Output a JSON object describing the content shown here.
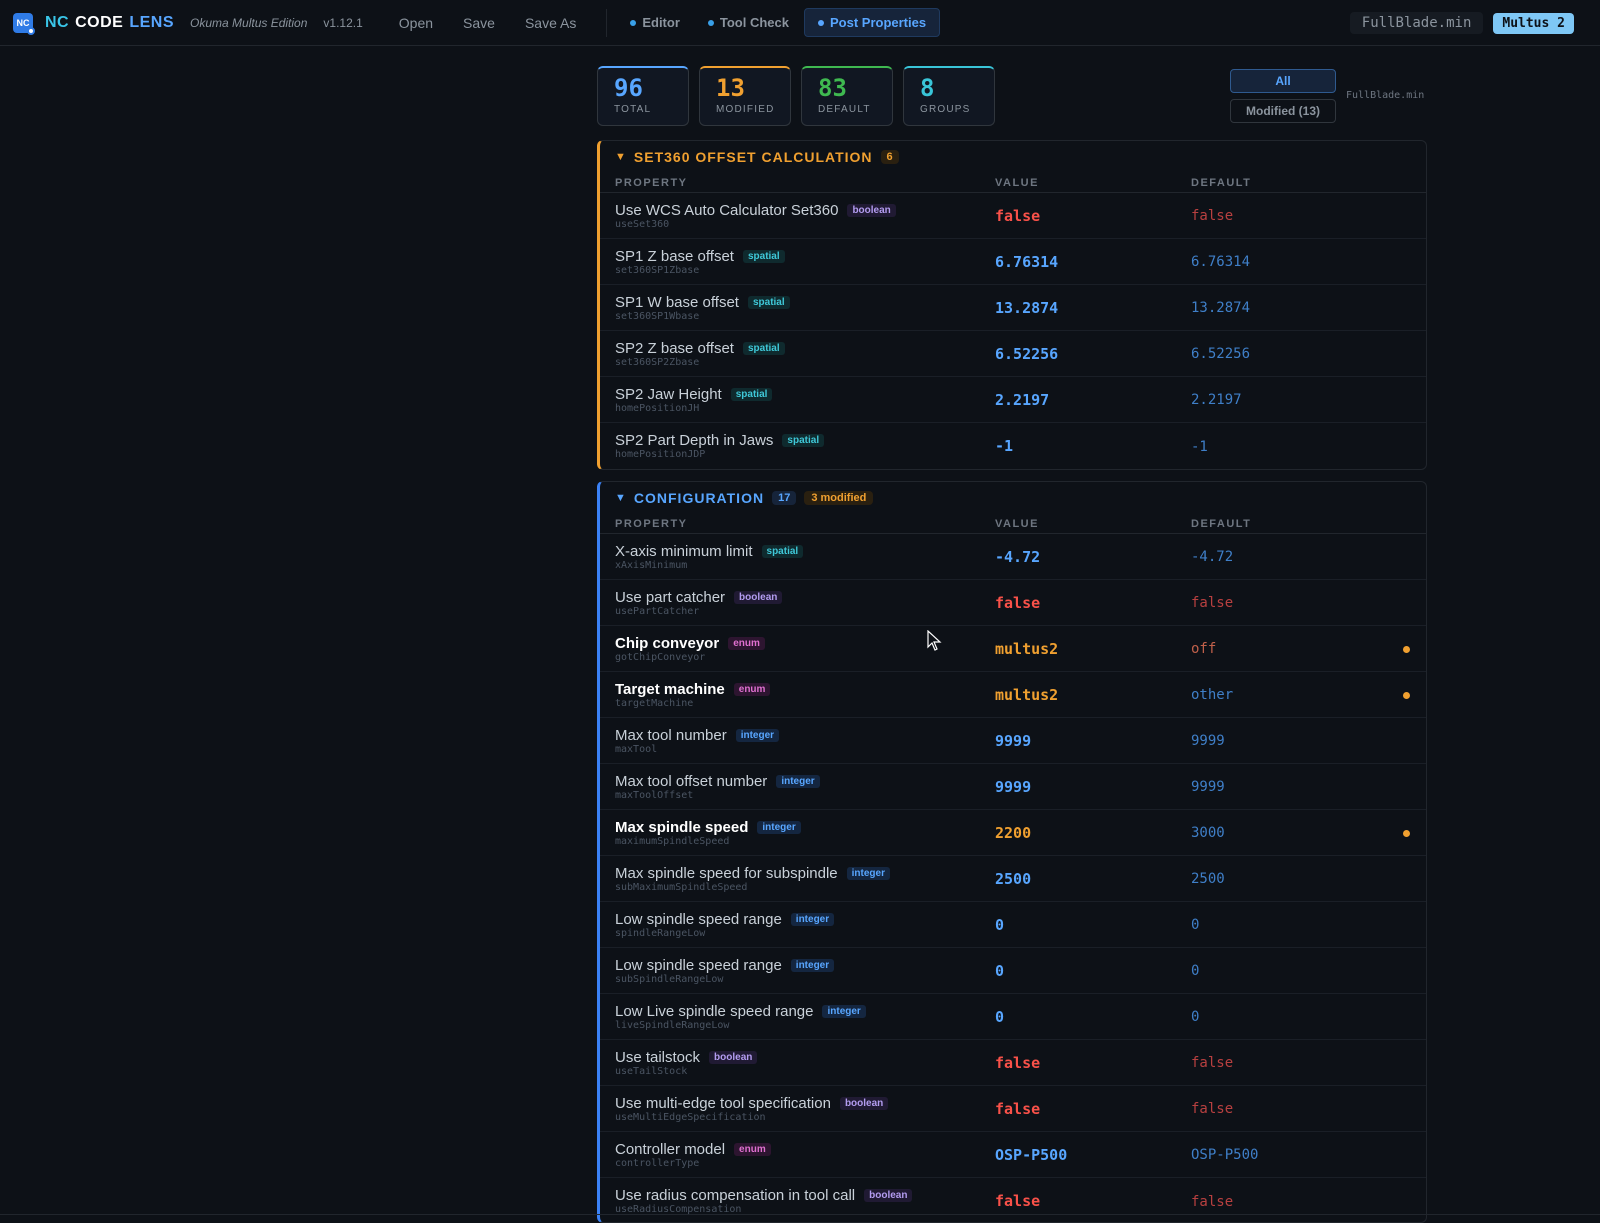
{
  "header": {
    "logo_text": "NC",
    "brand": [
      "NC",
      "CODE",
      "LENS"
    ],
    "edition": "Okuma Multus Edition",
    "version": "v1.12.1",
    "menu": [
      "Open",
      "Save",
      "Save As"
    ],
    "tabs": [
      {
        "label": "Editor",
        "active": false
      },
      {
        "label": "Tool Check",
        "active": false
      },
      {
        "label": "Post Properties",
        "active": true
      }
    ],
    "file_name": "FullBlade.min",
    "machine": "Multus 2"
  },
  "stats": [
    {
      "value": "96",
      "label": "TOTAL"
    },
    {
      "value": "13",
      "label": "MODIFIED"
    },
    {
      "value": "83",
      "label": "DEFAULT"
    },
    {
      "value": "8",
      "label": "GROUPS"
    }
  ],
  "filters": {
    "all": "All",
    "modified": "Modified (13)",
    "file": "FullBlade.min"
  },
  "columns": {
    "property": "PROPERTY",
    "value": "VALUE",
    "default": "DEFAULT"
  },
  "groups": [
    {
      "title": "SET360 OFFSET CALCULATION",
      "count": "6",
      "rows": [
        {
          "label": "Use WCS Auto Calculator Set360",
          "key": "useSet360",
          "type": "boolean",
          "value": "false",
          "default": "false"
        },
        {
          "label": "SP1 Z base offset",
          "key": "set360SP1Zbase",
          "type": "spatial",
          "value": "6.76314",
          "default": "6.76314"
        },
        {
          "label": "SP1 W base offset",
          "key": "set360SP1Wbase",
          "type": "spatial",
          "value": "13.2874",
          "default": "13.2874"
        },
        {
          "label": "SP2 Z base offset",
          "key": "set360SP2Zbase",
          "type": "spatial",
          "value": "6.52256",
          "default": "6.52256"
        },
        {
          "label": "SP2 Jaw Height",
          "key": "homePositionJH",
          "type": "spatial",
          "value": "2.2197",
          "default": "2.2197"
        },
        {
          "label": "SP2 Part Depth in Jaws",
          "key": "homePositionJDP",
          "type": "spatial",
          "value": "-1",
          "default": "-1"
        }
      ]
    },
    {
      "title": "CONFIGURATION",
      "count": "17",
      "modified": "3 modified",
      "rows": [
        {
          "label": "X-axis minimum limit",
          "key": "xAxisMinimum",
          "type": "spatial",
          "value": "-4.72",
          "default": "-4.72"
        },
        {
          "label": "Use part catcher",
          "key": "usePartCatcher",
          "type": "boolean",
          "value": "false",
          "default": "false"
        },
        {
          "label": "Chip conveyor",
          "key": "gotChipConveyor",
          "type": "enum",
          "value": "multus2",
          "default": "off",
          "modified": true
        },
        {
          "label": "Target machine",
          "key": "targetMachine",
          "type": "enum",
          "value": "multus2",
          "default": "other",
          "modified": true
        },
        {
          "label": "Max tool number",
          "key": "maxTool",
          "type": "integer",
          "value": "9999",
          "default": "9999"
        },
        {
          "label": "Max tool offset number",
          "key": "maxToolOffset",
          "type": "integer",
          "value": "9999",
          "default": "9999"
        },
        {
          "label": "Max spindle speed",
          "key": "maximumSpindleSpeed",
          "type": "integer",
          "value": "2200",
          "default": "3000",
          "modified": true
        },
        {
          "label": "Max spindle speed for subspindle",
          "key": "subMaximumSpindleSpeed",
          "type": "integer",
          "value": "2500",
          "default": "2500"
        },
        {
          "label": "Low spindle speed range",
          "key": "spindleRangeLow",
          "type": "integer",
          "value": "0",
          "default": "0"
        },
        {
          "label": "Low spindle speed range",
          "key": "subSpindleRangeLow",
          "type": "integer",
          "value": "0",
          "default": "0"
        },
        {
          "label": "Low Live spindle speed range",
          "key": "liveSpindleRangeLow",
          "type": "integer",
          "value": "0",
          "default": "0"
        },
        {
          "label": "Use tailstock",
          "key": "useTailStock",
          "type": "boolean",
          "value": "false",
          "default": "false"
        },
        {
          "label": "Use multi-edge tool specification",
          "key": "useMultiEdgeSpecification",
          "type": "boolean",
          "value": "false",
          "default": "false"
        },
        {
          "label": "Controller model",
          "key": "controllerType",
          "type": "enum",
          "value": "OSP-P500",
          "default": "OSP-P500"
        },
        {
          "label": "Use radius compensation in tool call",
          "key": "useRadiusCompensation",
          "type": "boolean",
          "value": "false",
          "default": "false"
        }
      ]
    }
  ]
}
